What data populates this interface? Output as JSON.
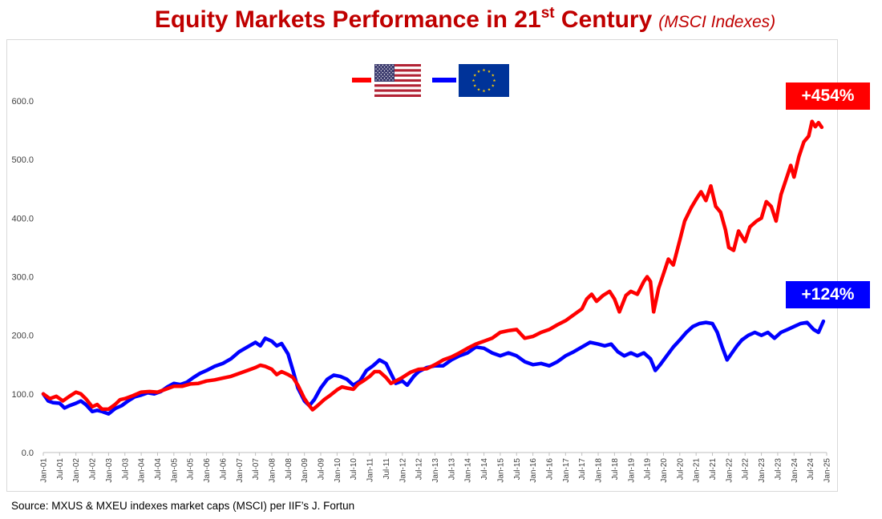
{
  "title": {
    "main": "Equity Markets Performance in 21",
    "superscript": "st",
    "main_end": " Century",
    "sub": "(MSCI Indexes)"
  },
  "source": "Source: MXUS & MXEU indexes market caps (MSCI) per IIF’s J. Fortun",
  "badges": {
    "us": "+454%",
    "eu": "+124%"
  },
  "colors": {
    "title": "#c00000",
    "us": "#ff0000",
    "eu": "#0000ff",
    "grid": "#d9d9d9"
  },
  "legend": [
    {
      "name": "MSCI US",
      "flag": "us-flag-icon",
      "color": "#ff0000"
    },
    {
      "name": "MSCI Europe",
      "flag": "eu-flag-icon",
      "color": "#0000ff"
    }
  ],
  "chart_data": {
    "type": "line",
    "title": "Equity Markets Performance in 21st Century (MSCI Indexes)",
    "xlabel": "",
    "ylabel": "",
    "ylim": [
      0,
      600
    ],
    "yticks": [
      "0.0",
      "100.0",
      "200.0",
      "300.0",
      "400.0",
      "500.0",
      "600.0"
    ],
    "ytick_values": [
      0,
      100,
      200,
      300,
      400,
      500,
      600
    ],
    "grid": false,
    "legend_position": "top-center",
    "x_range": [
      0,
      48
    ],
    "x_unit": "half-years since Jan-01",
    "categories": [
      "Jan-01",
      "Jul-01",
      "Jan-02",
      "Jul-02",
      "Jan-03",
      "Jul-03",
      "Jan-04",
      "Jul-04",
      "Jan-05",
      "Jul-05",
      "Jan-06",
      "Jul-06",
      "Jan-07",
      "Jul-07",
      "Jan-08",
      "Jul-08",
      "Jan-09",
      "Jul-09",
      "Jan-10",
      "Jul-10",
      "Jan-11",
      "Jul-11",
      "Jan-12",
      "Jul-12",
      "Jan-13",
      "Jul-13",
      "Jan-14",
      "Jul-14",
      "Jan-15",
      "Jul-15",
      "Jan-16",
      "Jul-16",
      "Jan-17",
      "Jul-17",
      "Jan-18",
      "Jul-18",
      "Jan-19",
      "Jul-19",
      "Jan-20",
      "Jul-20",
      "Jan-21",
      "Jul-21",
      "Jan-22",
      "Jul-22",
      "Jan-23",
      "Jul-23",
      "Jan-24",
      "Jul-24",
      "Jan-25"
    ],
    "series": [
      {
        "name": "MSCI US",
        "color": "#ff0000",
        "end_label": "+454%",
        "points": [
          [
            0,
            100
          ],
          [
            0.4,
            92
          ],
          [
            0.8,
            96
          ],
          [
            1.2,
            88
          ],
          [
            1.6,
            96
          ],
          [
            2.0,
            103
          ],
          [
            2.3,
            100
          ],
          [
            2.6,
            92
          ],
          [
            3.0,
            78
          ],
          [
            3.3,
            82
          ],
          [
            3.6,
            74
          ],
          [
            4.0,
            74
          ],
          [
            4.4,
            82
          ],
          [
            4.7,
            90
          ],
          [
            5.0,
            92
          ],
          [
            5.5,
            97
          ],
          [
            6.0,
            103
          ],
          [
            6.5,
            104
          ],
          [
            7.0,
            103
          ],
          [
            7.5,
            108
          ],
          [
            8.0,
            113
          ],
          [
            8.5,
            113
          ],
          [
            9.0,
            117
          ],
          [
            9.5,
            118
          ],
          [
            10.0,
            122
          ],
          [
            10.5,
            124
          ],
          [
            11.0,
            127
          ],
          [
            11.5,
            130
          ],
          [
            12.0,
            135
          ],
          [
            12.5,
            140
          ],
          [
            13.0,
            145
          ],
          [
            13.3,
            149
          ],
          [
            13.6,
            147
          ],
          [
            14.0,
            142
          ],
          [
            14.3,
            133
          ],
          [
            14.6,
            138
          ],
          [
            15.0,
            133
          ],
          [
            15.3,
            128
          ],
          [
            15.6,
            115
          ],
          [
            16.0,
            92
          ],
          [
            16.3,
            80
          ],
          [
            16.5,
            73
          ],
          [
            16.8,
            80
          ],
          [
            17.2,
            90
          ],
          [
            17.6,
            98
          ],
          [
            18.0,
            107
          ],
          [
            18.3,
            112
          ],
          [
            18.6,
            110
          ],
          [
            19.0,
            108
          ],
          [
            19.3,
            117
          ],
          [
            19.6,
            122
          ],
          [
            20.0,
            130
          ],
          [
            20.3,
            138
          ],
          [
            20.6,
            138
          ],
          [
            21.0,
            128
          ],
          [
            21.3,
            118
          ],
          [
            21.6,
            122
          ],
          [
            22.0,
            128
          ],
          [
            22.5,
            137
          ],
          [
            23.0,
            142
          ],
          [
            23.5,
            143
          ],
          [
            24.0,
            150
          ],
          [
            24.5,
            158
          ],
          [
            25.0,
            163
          ],
          [
            25.5,
            170
          ],
          [
            26.0,
            178
          ],
          [
            26.5,
            185
          ],
          [
            27.0,
            190
          ],
          [
            27.5,
            195
          ],
          [
            28.0,
            205
          ],
          [
            28.5,
            208
          ],
          [
            29.0,
            210
          ],
          [
            29.5,
            195
          ],
          [
            30.0,
            198
          ],
          [
            30.5,
            205
          ],
          [
            31.0,
            210
          ],
          [
            31.5,
            218
          ],
          [
            32.0,
            225
          ],
          [
            32.5,
            235
          ],
          [
            33.0,
            245
          ],
          [
            33.3,
            262
          ],
          [
            33.6,
            270
          ],
          [
            33.9,
            258
          ],
          [
            34.3,
            268
          ],
          [
            34.7,
            275
          ],
          [
            35.0,
            262
          ],
          [
            35.3,
            240
          ],
          [
            35.7,
            268
          ],
          [
            36.0,
            275
          ],
          [
            36.4,
            270
          ],
          [
            36.8,
            292
          ],
          [
            37.0,
            300
          ],
          [
            37.2,
            292
          ],
          [
            37.4,
            240
          ],
          [
            37.7,
            280
          ],
          [
            38.0,
            305
          ],
          [
            38.3,
            330
          ],
          [
            38.6,
            320
          ],
          [
            39.0,
            362
          ],
          [
            39.3,
            395
          ],
          [
            39.7,
            418
          ],
          [
            40.0,
            432
          ],
          [
            40.3,
            445
          ],
          [
            40.6,
            430
          ],
          [
            40.9,
            455
          ],
          [
            41.2,
            420
          ],
          [
            41.5,
            410
          ],
          [
            41.8,
            380
          ],
          [
            42.0,
            350
          ],
          [
            42.3,
            345
          ],
          [
            42.6,
            378
          ],
          [
            43.0,
            360
          ],
          [
            43.3,
            385
          ],
          [
            43.7,
            395
          ],
          [
            44.0,
            400
          ],
          [
            44.3,
            428
          ],
          [
            44.6,
            420
          ],
          [
            44.9,
            395
          ],
          [
            45.2,
            440
          ],
          [
            45.5,
            465
          ],
          [
            45.8,
            490
          ],
          [
            46.0,
            470
          ],
          [
            46.3,
            505
          ],
          [
            46.6,
            530
          ],
          [
            46.9,
            540
          ],
          [
            47.1,
            565
          ],
          [
            47.3,
            556
          ],
          [
            47.5,
            563
          ],
          [
            47.7,
            555
          ]
        ]
      },
      {
        "name": "MSCI Europe",
        "color": "#0000ff",
        "end_label": "+124%",
        "points": [
          [
            0,
            100
          ],
          [
            0.3,
            88
          ],
          [
            0.6,
            85
          ],
          [
            1.0,
            84
          ],
          [
            1.3,
            76
          ],
          [
            1.6,
            80
          ],
          [
            2.0,
            84
          ],
          [
            2.3,
            88
          ],
          [
            2.6,
            82
          ],
          [
            3.0,
            70
          ],
          [
            3.3,
            72
          ],
          [
            3.6,
            70
          ],
          [
            4.0,
            66
          ],
          [
            4.4,
            75
          ],
          [
            4.8,
            80
          ],
          [
            5.2,
            88
          ],
          [
            5.6,
            95
          ],
          [
            6.0,
            98
          ],
          [
            6.4,
            102
          ],
          [
            6.8,
            100
          ],
          [
            7.2,
            104
          ],
          [
            7.6,
            112
          ],
          [
            8.0,
            118
          ],
          [
            8.4,
            116
          ],
          [
            8.8,
            120
          ],
          [
            9.2,
            128
          ],
          [
            9.6,
            135
          ],
          [
            10.0,
            140
          ],
          [
            10.5,
            147
          ],
          [
            11.0,
            152
          ],
          [
            11.5,
            160
          ],
          [
            12.0,
            172
          ],
          [
            12.5,
            180
          ],
          [
            13.0,
            188
          ],
          [
            13.3,
            182
          ],
          [
            13.6,
            195
          ],
          [
            14.0,
            190
          ],
          [
            14.3,
            182
          ],
          [
            14.6,
            186
          ],
          [
            15.0,
            168
          ],
          [
            15.3,
            140
          ],
          [
            15.6,
            110
          ],
          [
            16.0,
            88
          ],
          [
            16.3,
            80
          ],
          [
            16.6,
            90
          ],
          [
            17.0,
            110
          ],
          [
            17.4,
            125
          ],
          [
            17.8,
            132
          ],
          [
            18.2,
            130
          ],
          [
            18.6,
            125
          ],
          [
            19.0,
            115
          ],
          [
            19.4,
            122
          ],
          [
            19.8,
            140
          ],
          [
            20.2,
            148
          ],
          [
            20.6,
            158
          ],
          [
            21.0,
            152
          ],
          [
            21.3,
            135
          ],
          [
            21.6,
            118
          ],
          [
            22.0,
            122
          ],
          [
            22.3,
            115
          ],
          [
            22.7,
            130
          ],
          [
            23.0,
            138
          ],
          [
            23.5,
            145
          ],
          [
            24.0,
            148
          ],
          [
            24.5,
            148
          ],
          [
            25.0,
            158
          ],
          [
            25.5,
            165
          ],
          [
            26.0,
            170
          ],
          [
            26.5,
            180
          ],
          [
            27.0,
            178
          ],
          [
            27.5,
            170
          ],
          [
            28.0,
            165
          ],
          [
            28.5,
            170
          ],
          [
            29.0,
            165
          ],
          [
            29.5,
            155
          ],
          [
            30.0,
            150
          ],
          [
            30.5,
            152
          ],
          [
            31.0,
            148
          ],
          [
            31.5,
            155
          ],
          [
            32.0,
            165
          ],
          [
            32.5,
            172
          ],
          [
            33.0,
            180
          ],
          [
            33.5,
            188
          ],
          [
            34.0,
            185
          ],
          [
            34.4,
            182
          ],
          [
            34.8,
            185
          ],
          [
            35.2,
            172
          ],
          [
            35.6,
            165
          ],
          [
            36.0,
            170
          ],
          [
            36.4,
            165
          ],
          [
            36.8,
            170
          ],
          [
            37.2,
            160
          ],
          [
            37.5,
            140
          ],
          [
            37.8,
            150
          ],
          [
            38.2,
            165
          ],
          [
            38.6,
            180
          ],
          [
            39.0,
            192
          ],
          [
            39.4,
            205
          ],
          [
            39.8,
            215
          ],
          [
            40.2,
            220
          ],
          [
            40.6,
            222
          ],
          [
            41.0,
            220
          ],
          [
            41.3,
            205
          ],
          [
            41.6,
            180
          ],
          [
            41.9,
            158
          ],
          [
            42.2,
            170
          ],
          [
            42.5,
            182
          ],
          [
            42.8,
            192
          ],
          [
            43.2,
            200
          ],
          [
            43.6,
            205
          ],
          [
            44.0,
            200
          ],
          [
            44.4,
            205
          ],
          [
            44.8,
            195
          ],
          [
            45.2,
            205
          ],
          [
            45.6,
            210
          ],
          [
            46.0,
            215
          ],
          [
            46.4,
            220
          ],
          [
            46.8,
            222
          ],
          [
            47.2,
            210
          ],
          [
            47.5,
            205
          ],
          [
            47.8,
            224
          ]
        ]
      }
    ]
  }
}
